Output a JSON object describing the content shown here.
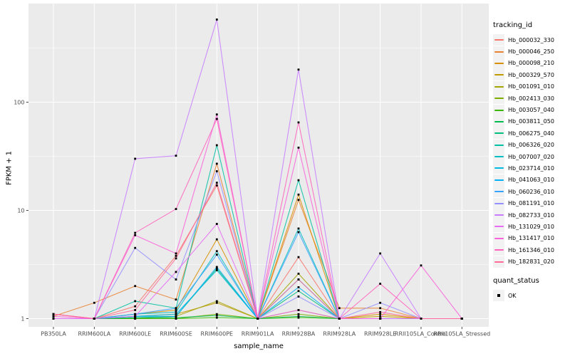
{
  "chart_data": {
    "type": "line",
    "xlabel": "sample_name",
    "ylabel": "FPKM + 1",
    "y_scale": "log10",
    "ylim": [
      0.8,
      800
    ],
    "y_ticks": [
      1,
      10,
      100
    ],
    "y_tick_labels": [
      "1",
      "10",
      "100"
    ],
    "grid": true,
    "panel_bg": "#EBEBEB",
    "grid_color": "#FFFFFF",
    "tick_label_color": "#4D4D4D",
    "point_color": "#000000",
    "point_shape": "square",
    "legend_position": "right",
    "legend_title": "tracking_id",
    "quant_legend": {
      "title": "quant_status",
      "items": [
        "OK"
      ]
    },
    "categories": [
      "PB350LA",
      "RRIM600LA",
      "RRIM600LE",
      "RRIM600SE",
      "RRIM600PE",
      "RRIM901LA",
      "RRIM928BA",
      "RRIM928LA",
      "RRIM928LE",
      "RRII105LA_Control",
      "RRII105LA_Stressed"
    ],
    "series": [
      {
        "name": "Hb_000032_330",
        "color": "#F8766D",
        "values": [
          1.1,
          1,
          1.3,
          3.8,
          17,
          1,
          3.7,
          1,
          1,
          1,
          1
        ]
      },
      {
        "name": "Hb_000046_250",
        "color": "#EA8331",
        "values": [
          1.05,
          1.4,
          2,
          1.5,
          27,
          1,
          12.5,
          1.25,
          1.25,
          1,
          1
        ]
      },
      {
        "name": "Hb_000098_210",
        "color": "#D89000",
        "values": [
          1,
          1,
          1.1,
          1.2,
          5.4,
          1,
          14,
          1,
          1.1,
          1,
          1
        ]
      },
      {
        "name": "Hb_000329_570",
        "color": "#C09B00",
        "values": [
          1,
          1,
          1.05,
          1.1,
          1.4,
          1,
          1.2,
          1,
          1.05,
          1,
          1
        ]
      },
      {
        "name": "Hb_001091_010",
        "color": "#A3A500",
        "values": [
          1,
          1,
          1,
          1.05,
          1.45,
          1,
          2.6,
          1,
          1,
          1,
          1
        ]
      },
      {
        "name": "Hb_002413_030",
        "color": "#7CAE00",
        "values": [
          1,
          1,
          1,
          1,
          1.1,
          1,
          1.1,
          1,
          1,
          1,
          1
        ]
      },
      {
        "name": "Hb_003057_040",
        "color": "#39B600",
        "values": [
          1,
          1,
          1,
          1,
          1.02,
          1,
          1.02,
          1,
          1,
          1,
          1
        ]
      },
      {
        "name": "Hb_003811_050",
        "color": "#00BB4E",
        "values": [
          1,
          1,
          1.02,
          1.02,
          1.07,
          1,
          1.05,
          1,
          1,
          1,
          1
        ]
      },
      {
        "name": "Hb_006275_040",
        "color": "#00BF7D",
        "values": [
          1,
          1,
          1.02,
          1.05,
          2.9,
          1,
          1.8,
          1,
          1,
          1,
          1
        ]
      },
      {
        "name": "Hb_006326_020",
        "color": "#00C1A3",
        "values": [
          1,
          1,
          1.45,
          1.25,
          40,
          1,
          19,
          1,
          1,
          1,
          1
        ]
      },
      {
        "name": "Hb_007007_020",
        "color": "#00BFC4",
        "values": [
          1,
          1,
          1.1,
          1.15,
          4.2,
          1,
          6.8,
          1,
          1,
          1,
          1
        ]
      },
      {
        "name": "Hb_023714_010",
        "color": "#00BAE0",
        "values": [
          1,
          1,
          1.05,
          1.1,
          2.8,
          1,
          2.3,
          1,
          1,
          1,
          1
        ]
      },
      {
        "name": "Hb_041063_010",
        "color": "#00B0F6",
        "values": [
          1,
          1,
          1.05,
          1.05,
          3,
          1,
          1.95,
          1,
          1,
          1,
          1
        ]
      },
      {
        "name": "Hb_060236_010",
        "color": "#35A2FF",
        "values": [
          1,
          1,
          1.1,
          1.25,
          3.9,
          1,
          6.3,
          1,
          1,
          1,
          1
        ]
      },
      {
        "name": "Hb_081191_010",
        "color": "#9590FF",
        "values": [
          1,
          1,
          4.5,
          2.3,
          23,
          1,
          1.6,
          1,
          1.4,
          1,
          1
        ]
      },
      {
        "name": "Hb_082733_010",
        "color": "#C77CFF",
        "values": [
          1,
          1,
          30,
          32,
          580,
          1,
          200,
          1,
          4,
          1,
          1
        ]
      },
      {
        "name": "Hb_131029_010",
        "color": "#E76BF3",
        "values": [
          1,
          1,
          1.05,
          2.7,
          7.5,
          1,
          1.2,
          1,
          1,
          1,
          1
        ]
      },
      {
        "name": "Hb_131417_010",
        "color": "#FA62DB",
        "values": [
          1.05,
          1,
          5.9,
          4,
          77,
          1,
          38,
          1,
          1,
          3.1,
          1
        ]
      },
      {
        "name": "Hb_161346_010",
        "color": "#FF62BC",
        "values": [
          1.1,
          1,
          6.2,
          10.3,
          70,
          1,
          65,
          1,
          2.1,
          1,
          1
        ]
      },
      {
        "name": "Hb_182831_020",
        "color": "#FF6A98",
        "values": [
          1.1,
          1,
          1.2,
          3.6,
          18,
          1,
          2.3,
          1,
          1.15,
          1,
          1
        ]
      }
    ]
  }
}
